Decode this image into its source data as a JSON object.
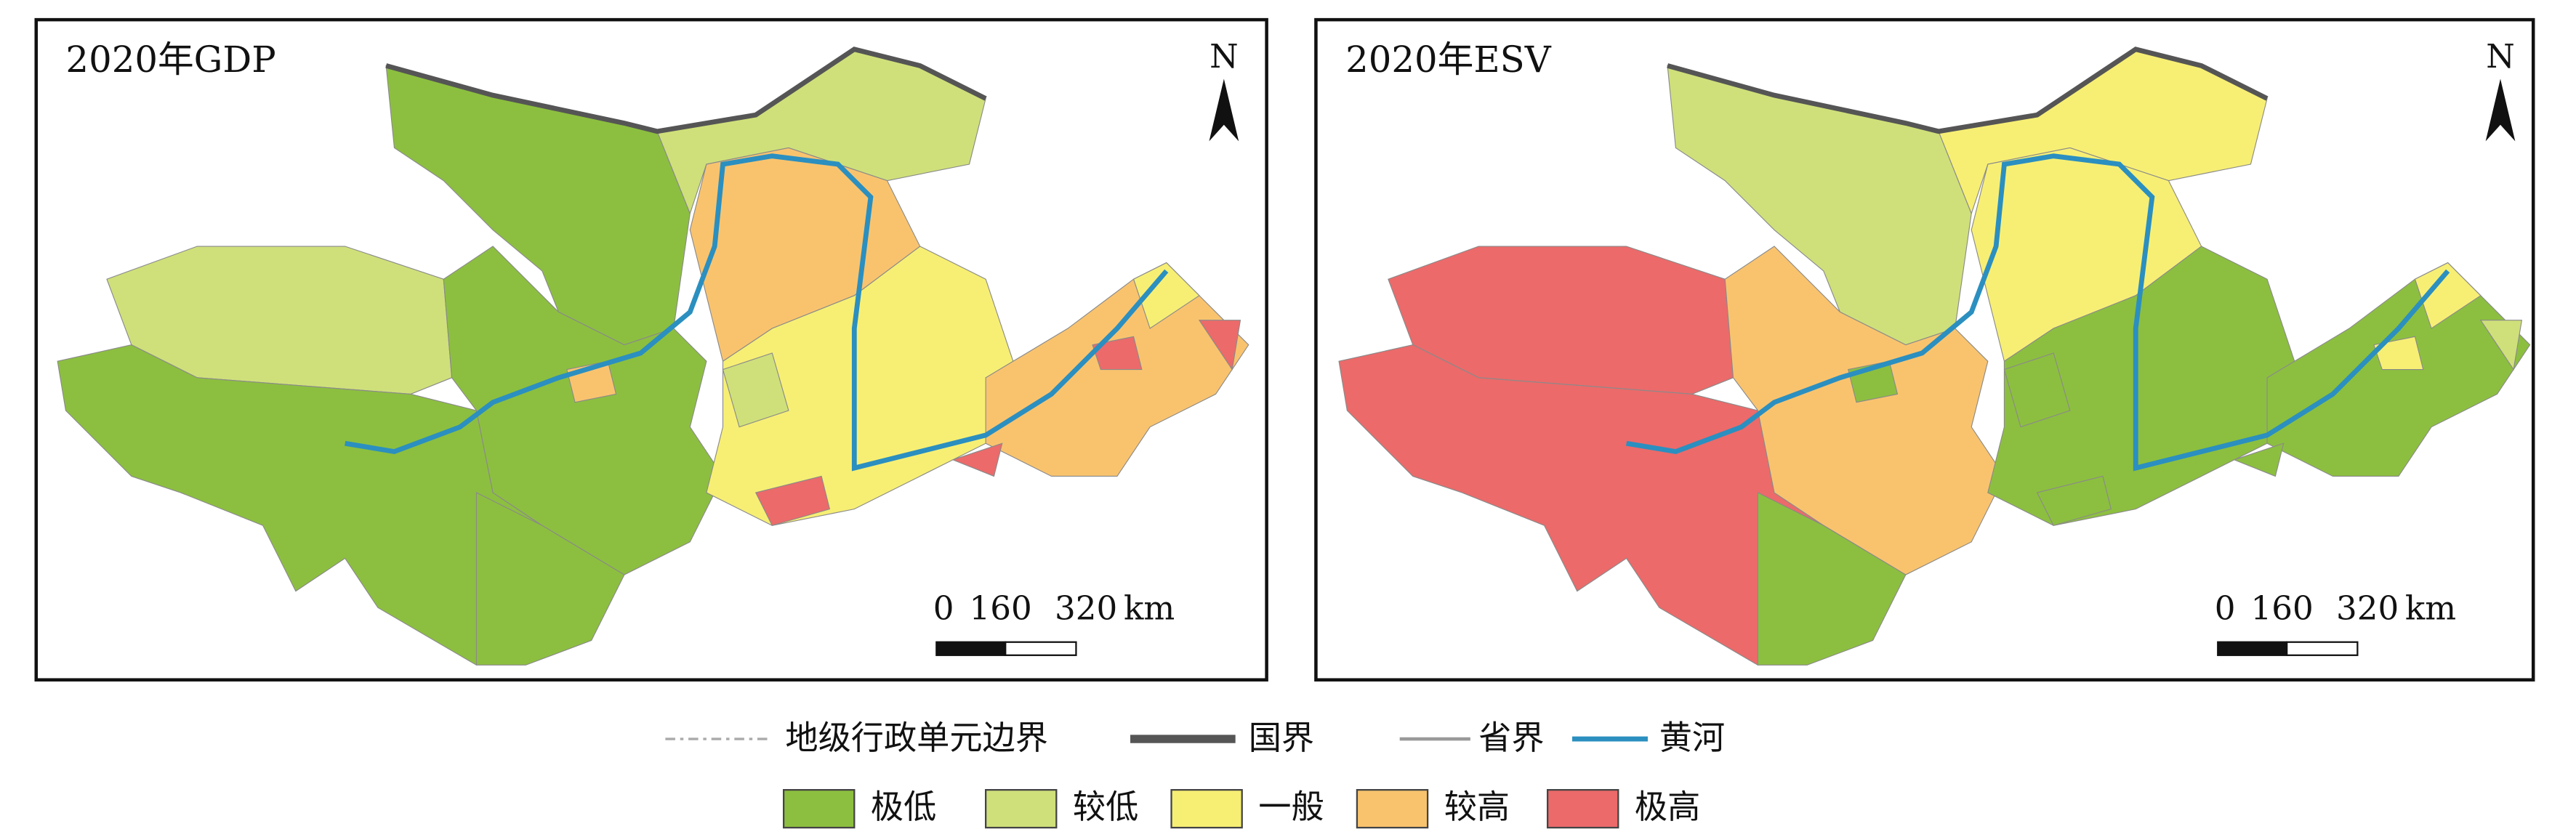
{
  "panels": [
    {
      "title": "2020年GDP",
      "north": "N",
      "scale": {
        "labels": [
          "0",
          "160",
          "320"
        ],
        "unit": "km"
      }
    },
    {
      "title": "2020年ESV",
      "north": "N",
      "scale": {
        "labels": [
          "0",
          "160",
          "320"
        ],
        "unit": "km"
      }
    }
  ],
  "legend": {
    "lines": [
      {
        "label": "地级行政单元边界",
        "color": "#aaaaaa"
      },
      {
        "label": "国界",
        "color": "#555555"
      },
      {
        "label": "省界",
        "color": "#999999"
      },
      {
        "label": "黄河",
        "color": "#2b8fc0"
      }
    ],
    "classes": [
      {
        "label": "极低",
        "color": "#8cbf3f"
      },
      {
        "label": "较低",
        "color": "#cfe07a"
      },
      {
        "label": "一般",
        "color": "#f7ef74"
      },
      {
        "label": "较高",
        "color": "#f9c36e"
      },
      {
        "label": "极高",
        "color": "#ec6a6a"
      }
    ]
  }
}
